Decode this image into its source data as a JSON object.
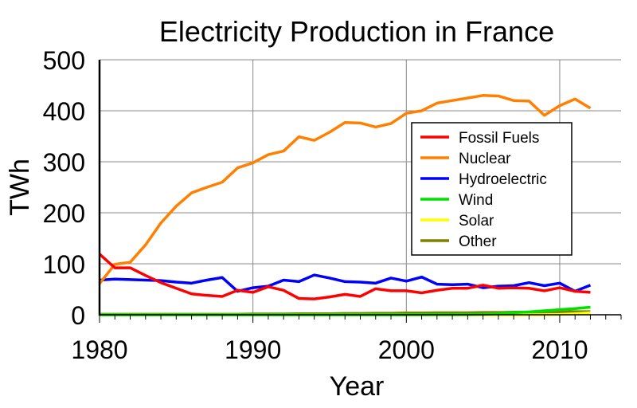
{
  "chart_data": {
    "type": "line",
    "title": "Electricity Production in France",
    "xlabel": "Year",
    "ylabel": "TWh",
    "xlim": [
      1980,
      2014
    ],
    "ylim": [
      0,
      500
    ],
    "xticks": [
      1980,
      1990,
      2000,
      2010
    ],
    "yticks": [
      0,
      100,
      200,
      300,
      400,
      500
    ],
    "grid": true,
    "legend_position": "center-right",
    "x": [
      1980,
      1981,
      1982,
      1983,
      1984,
      1985,
      1986,
      1987,
      1988,
      1989,
      1990,
      1991,
      1992,
      1993,
      1994,
      1995,
      1996,
      1997,
      1998,
      1999,
      2000,
      2001,
      2002,
      2003,
      2004,
      2005,
      2006,
      2007,
      2008,
      2009,
      2010,
      2011,
      2012
    ],
    "series": [
      {
        "name": "Fossil Fuels",
        "color": "#ff0000",
        "values": [
          119,
          92,
          92,
          77,
          63,
          52,
          41,
          38,
          36,
          48,
          44,
          55,
          48,
          32,
          31,
          35,
          40,
          36,
          51,
          47,
          47,
          43,
          48,
          52,
          52,
          58,
          52,
          53,
          52,
          47,
          53,
          46,
          44
        ]
      },
      {
        "name": "Nuclear",
        "color": "#ff8000",
        "values": [
          61,
          99,
          103,
          137,
          180,
          213,
          239,
          250,
          260,
          288,
          298,
          314,
          321,
          349,
          342,
          358,
          377,
          376,
          368,
          375,
          395,
          400,
          415,
          420,
          425,
          430,
          429,
          420,
          419,
          391,
          410,
          423,
          405
        ]
      },
      {
        "name": "Hydroelectric",
        "color": "#0000ff",
        "values": [
          68,
          70,
          69,
          68,
          67,
          64,
          62,
          68,
          73,
          46,
          53,
          56,
          68,
          65,
          78,
          72,
          65,
          64,
          62,
          72,
          66,
          74,
          60,
          59,
          60,
          53,
          56,
          57,
          63,
          57,
          62,
          46,
          58
        ]
      },
      {
        "name": "Wind",
        "color": "#00e000",
        "values": [
          0,
          0,
          0,
          0,
          0,
          0,
          0,
          0,
          0,
          0,
          0,
          0,
          0,
          0,
          0,
          0,
          0,
          0,
          0,
          0,
          0.1,
          0.1,
          0.3,
          0.4,
          0.6,
          1,
          2.2,
          4,
          5.7,
          7.9,
          9.9,
          12.1,
          14.9
        ]
      },
      {
        "name": "Solar",
        "color": "#ffff00",
        "values": [
          0,
          0,
          0,
          0,
          0,
          0,
          0,
          0,
          0,
          0,
          0,
          0,
          0,
          0,
          0,
          0,
          0,
          0,
          0,
          0,
          0,
          0,
          0,
          0,
          0,
          0,
          0,
          0,
          0,
          0.2,
          0.6,
          2,
          4
        ]
      },
      {
        "name": "Other",
        "color": "#808000",
        "values": [
          1,
          1,
          1,
          1,
          1,
          1,
          1,
          1,
          1,
          1,
          1.5,
          1.5,
          1.5,
          2,
          2,
          2,
          2.5,
          2.5,
          3,
          3,
          3.5,
          3.5,
          4,
          4,
          4,
          4.5,
          4.5,
          5,
          5,
          5,
          5.5,
          6,
          6
        ]
      }
    ]
  }
}
